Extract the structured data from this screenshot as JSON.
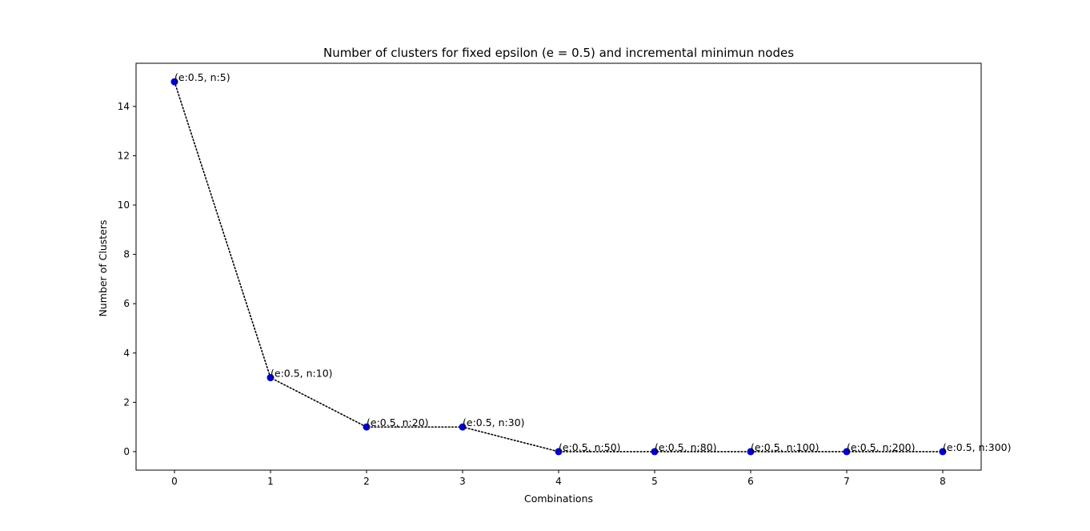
{
  "chart_data": {
    "type": "line",
    "title": "Number of clusters for fixed epsilon (e = 0.5) and incremental minimun nodes",
    "xlabel": "Combinations",
    "ylabel": "Number of Clusters",
    "x": [
      0,
      1,
      2,
      3,
      4,
      5,
      6,
      7,
      8
    ],
    "values": [
      15,
      3,
      1,
      1,
      0,
      0,
      0,
      0,
      0
    ],
    "point_labels": [
      "(e:0.5, n:5)",
      "(e:0.5, n:10)",
      "(e:0.5, n:20)",
      "(e:0.5, n:30)",
      "(e:0.5, n:50)",
      "(e:0.5, n:80)",
      "(e:0.5, n:100)",
      "(e:0.5, n:200)",
      "(e:0.5, n:300)"
    ],
    "xticks": [
      0,
      1,
      2,
      3,
      4,
      5,
      6,
      7,
      8
    ],
    "yticks": [
      0,
      2,
      4,
      6,
      8,
      10,
      12,
      14
    ],
    "xlim": [
      -0.4,
      8.4
    ],
    "ylim": [
      -0.75,
      15.75
    ],
    "grid": false,
    "line_style": "dotted",
    "line_color": "#000000",
    "marker_color": "#0000cc"
  }
}
